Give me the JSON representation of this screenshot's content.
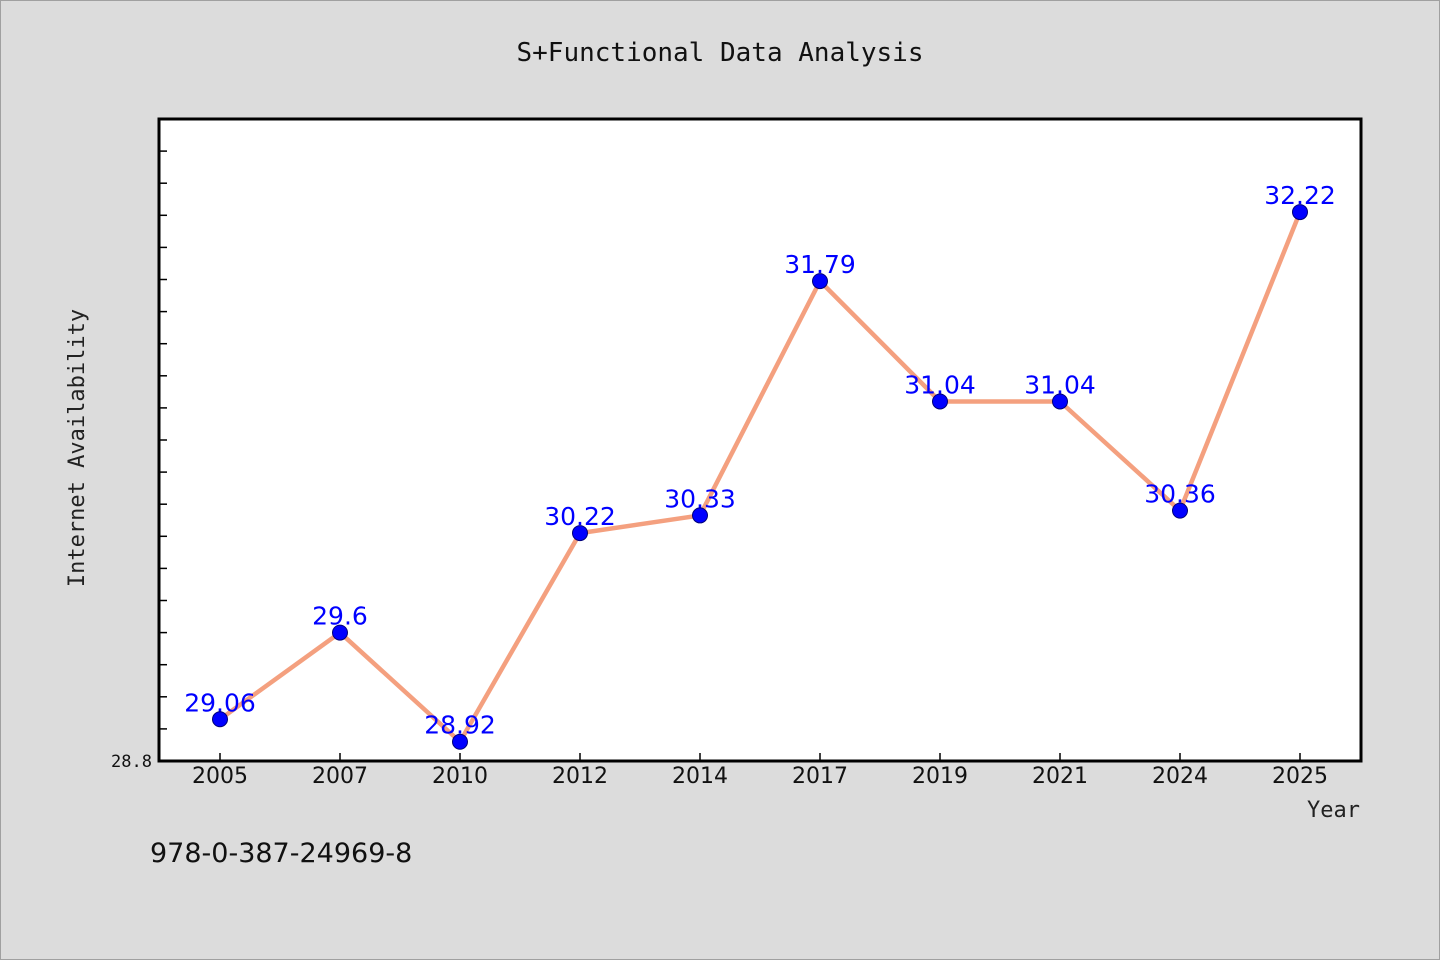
{
  "chart_data": {
    "type": "line",
    "title": "S+Functional Data Analysis",
    "xlabel": "Year",
    "ylabel": "Internet Availability",
    "categories": [
      "2005",
      "2007",
      "2010",
      "2012",
      "2014",
      "2017",
      "2019",
      "2021",
      "2024",
      "2025"
    ],
    "values": [
      29.06,
      29.6,
      28.92,
      30.22,
      30.33,
      31.79,
      31.04,
      31.04,
      30.36,
      32.22
    ],
    "data_labels": [
      "29.06",
      "29.6",
      "28.92",
      "30.22",
      "30.33",
      "31.79",
      "31.04",
      "31.04",
      "30.36",
      "32.22"
    ],
    "ylim": [
      28.8,
      32.8
    ],
    "y_min_label": "28.8",
    "grid": false,
    "legend": "none",
    "colors": {
      "line": "#f4a07f",
      "marker": "#0000ff",
      "data_label": "#0000ff",
      "plot_background": "#ffffff",
      "page_background": "#dcdcdc"
    }
  },
  "footer": {
    "isbn": "978-0-387-24969-8"
  }
}
